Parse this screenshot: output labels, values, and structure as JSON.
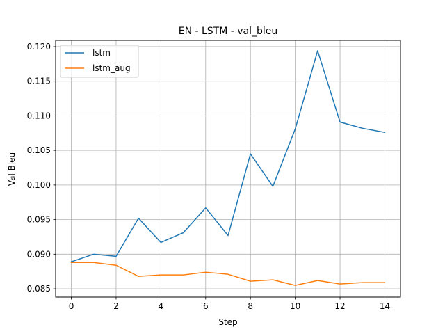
{
  "chart_data": {
    "type": "line",
    "title": "EN - LSTM - val_bleu",
    "xlabel": "Step",
    "ylabel": "Val Bleu",
    "xlim": [
      -0.7,
      14.7
    ],
    "ylim": [
      0.0838,
      0.1209
    ],
    "xticks": [
      0,
      2,
      4,
      6,
      8,
      10,
      12,
      14
    ],
    "yticks": [
      0.085,
      0.09,
      0.095,
      0.1,
      0.105,
      0.11,
      0.115,
      0.12
    ],
    "ytick_labels": [
      "0.085",
      "0.090",
      "0.095",
      "0.100",
      "0.105",
      "0.110",
      "0.115",
      "0.120"
    ],
    "grid": true,
    "legend_position": "top-left",
    "x": [
      0,
      1,
      2,
      3,
      4,
      5,
      6,
      7,
      8,
      9,
      10,
      11,
      12,
      13,
      14
    ],
    "series": [
      {
        "name": "lstm",
        "color": "#1f77b4",
        "values": [
          0.0889,
          0.09,
          0.0897,
          0.0952,
          0.0917,
          0.0931,
          0.0967,
          0.0927,
          0.1045,
          0.0998,
          0.1081,
          0.1194,
          0.1091,
          0.1082,
          0.1076
        ]
      },
      {
        "name": "lstm_aug",
        "color": "#ff7f0e",
        "values": [
          0.0888,
          0.0888,
          0.0884,
          0.0868,
          0.087,
          0.087,
          0.0874,
          0.0871,
          0.0861,
          0.0863,
          0.0855,
          0.0862,
          0.0857,
          0.0859,
          0.0859
        ]
      }
    ]
  }
}
